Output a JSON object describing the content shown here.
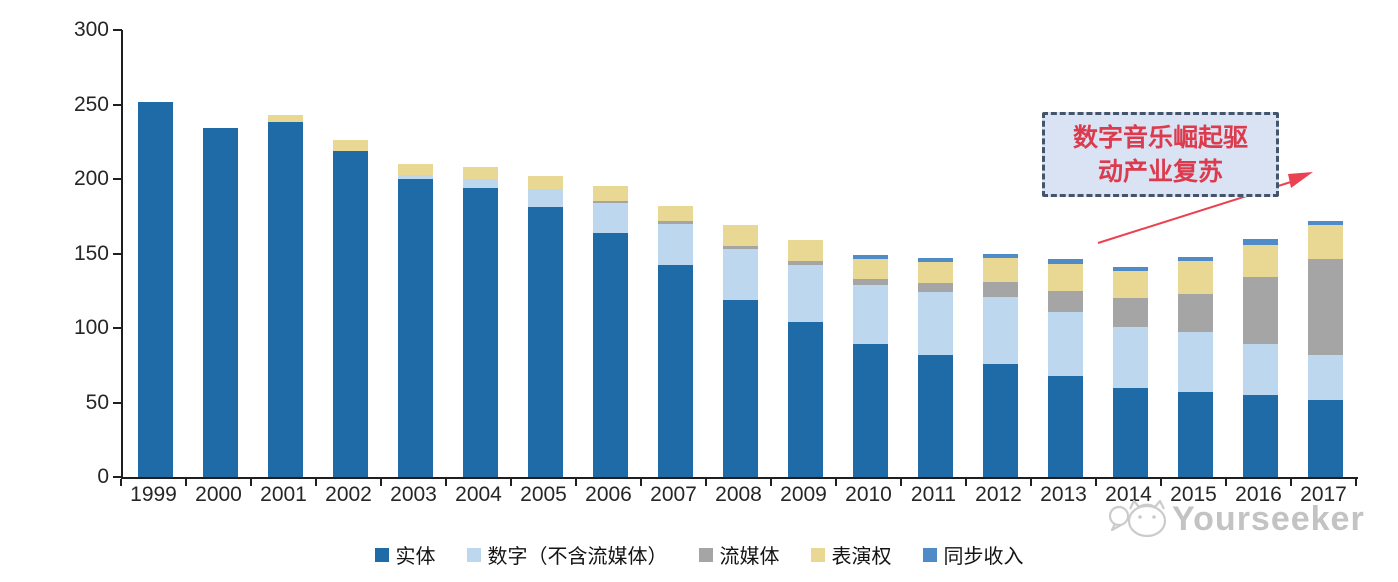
{
  "chart_data": {
    "type": "stacked-bar",
    "title": "",
    "xlabel": "",
    "ylabel": "",
    "grid": false,
    "legend_position": "bottom",
    "ylim": [
      0,
      300
    ],
    "yticks": [
      0,
      50,
      100,
      150,
      200,
      250,
      300
    ],
    "categories": [
      "1999",
      "2000",
      "2001",
      "2002",
      "2003",
      "2004",
      "2005",
      "2006",
      "2007",
      "2008",
      "2009",
      "2010",
      "2011",
      "2012",
      "2013",
      "2014",
      "2015",
      "2016",
      "2017"
    ],
    "series": [
      {
        "key": "physical",
        "name": "实体",
        "color": "#1F6BA8",
        "values": [
          252,
          234,
          238,
          219,
          200,
          194,
          181,
          164,
          142,
          119,
          104,
          89,
          82,
          76,
          68,
          60,
          57,
          55,
          52
        ]
      },
      {
        "key": "digital_excl_streaming",
        "name": "数字（不含流媒体）",
        "color": "#BDD7EE",
        "values": [
          0,
          0,
          0,
          0,
          3,
          6,
          12,
          20,
          28,
          34,
          38,
          40,
          42,
          45,
          43,
          41,
          40,
          34,
          30
        ]
      },
      {
        "key": "streaming",
        "name": "流媒体",
        "color": "#A5A5A5",
        "values": [
          0,
          0,
          0,
          0,
          0,
          0,
          0,
          1,
          2,
          2,
          3,
          4,
          6,
          10,
          14,
          19,
          26,
          45,
          64
        ]
      },
      {
        "key": "performance_rights",
        "name": "表演权",
        "color": "#E9D794",
        "values": [
          0,
          0,
          5,
          7,
          7,
          8,
          9,
          10,
          10,
          14,
          14,
          13,
          14,
          16,
          18,
          18,
          22,
          22,
          23
        ]
      },
      {
        "key": "sync",
        "name": "同步收入",
        "color": "#4E8BC7",
        "values": [
          0,
          0,
          0,
          0,
          0,
          0,
          0,
          0,
          0,
          0,
          0,
          3,
          3,
          3,
          3,
          3,
          3,
          4,
          3
        ]
      }
    ]
  },
  "annotation": {
    "full_text": "数字音乐崛起驱动产业复苏",
    "line1": "数字音乐崛起驱",
    "line2": "动产业复苏",
    "box_fill": "#D9E3F3",
    "border_color": "#44546A",
    "text_color": "#DC3A4D",
    "arrow_color": "#EA4250"
  },
  "watermark": {
    "text": "Yourseeker"
  }
}
